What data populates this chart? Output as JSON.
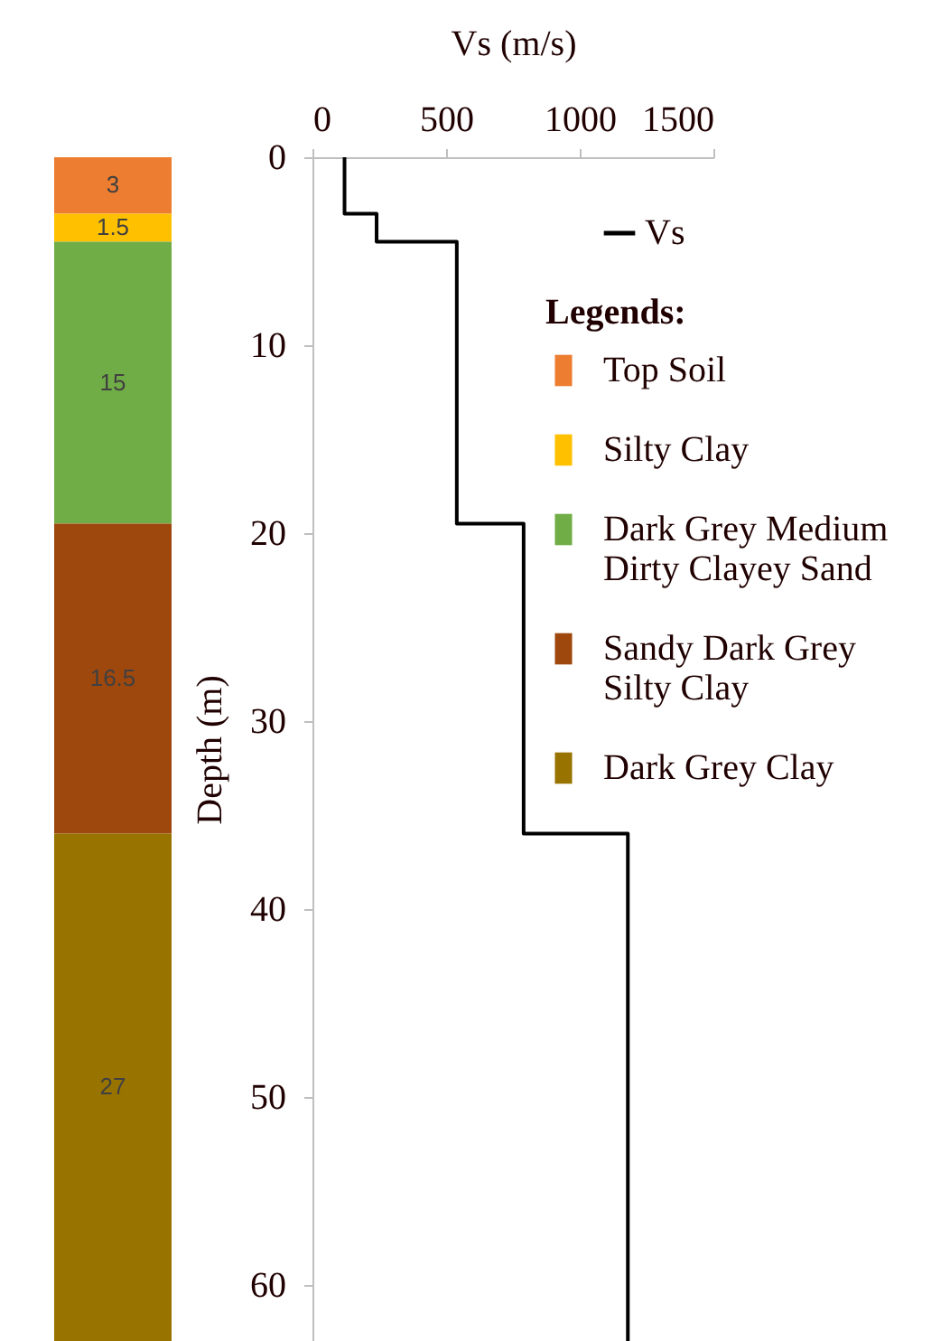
{
  "chart_data": [
    {
      "type": "bar",
      "stacked": true,
      "categories": [
        null
      ],
      "ylim": [
        63,
        0
      ],
      "tick_labels": false,
      "legend_title": "Legends:",
      "legend": "right",
      "data_labels": true,
      "series": [
        {
          "name": "Top Soil",
          "color": "#ed7d31",
          "values": [
            3
          ]
        },
        {
          "name": "Silty Clay",
          "color": "#ffc000",
          "values": [
            1.5
          ]
        },
        {
          "name": "Dark Grey Medium Dirty Clayey Sand",
          "color": "#70ad47",
          "values": [
            15
          ]
        },
        {
          "name": "Sandy Dark Grey Silty Clay",
          "color": "#9e480e",
          "values": [
            16.5
          ]
        },
        {
          "name": "Dark Grey Clay",
          "color": "#997300",
          "values": [
            27
          ]
        }
      ]
    },
    {
      "type": "line",
      "xlabel": "Vs (m/s)",
      "ylabel": "Depth (m)",
      "xlim": [
        0,
        1500
      ],
      "xticks": [
        0,
        500,
        1000,
        1500
      ],
      "ylim": [
        63,
        0
      ],
      "yticks": [
        0,
        10,
        20,
        30,
        40,
        50,
        60
      ],
      "legend": "top right",
      "series": [
        {
          "name": "Vs",
          "color": "#000000",
          "x": [
            120,
            120,
            240,
            240,
            540,
            540,
            790,
            790,
            1180,
            1180
          ],
          "values": [
            0,
            3,
            3,
            4.5,
            4.5,
            19.5,
            19.5,
            36,
            36,
            63
          ]
        }
      ]
    }
  ]
}
